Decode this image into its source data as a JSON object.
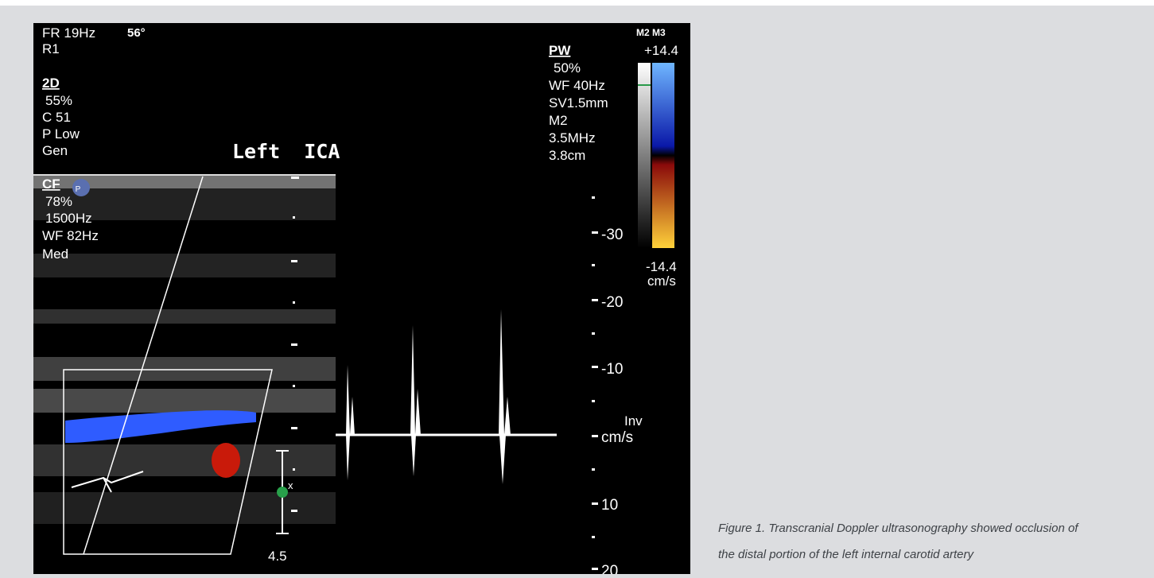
{
  "image": {
    "left_lines": [
      "FR 19Hz",
      "R1",
      "2D",
      "55%",
      "C 51",
      "P Low",
      "Gen",
      "CF",
      "78%",
      "1500Hz",
      "WF 82Hz",
      "Med"
    ],
    "angle": "56°",
    "probe_mark": "P",
    "title": "Left  ICA",
    "pw_lines": [
      "PW",
      "50%",
      "WF  40Hz",
      "SV1.5mm",
      "M2",
      "3.5MHz",
      "3.8cm"
    ],
    "scale": {
      "header": "M2 M3",
      "max": "+14.4",
      "min": "-14.4",
      "unit": "cm/s"
    },
    "velocity_labels": [
      "-30",
      "-20",
      "-10",
      "10",
      "20"
    ],
    "baseline_labels": [
      "Inv",
      "cm/s"
    ],
    "depth_marker": "x",
    "depth": "4.5"
  },
  "caption": {
    "lines": [
      "Figure 1. Transcranial Doppler ultrasonography showed occlusion of",
      "the distal portion of the left internal carotid artery"
    ]
  }
}
